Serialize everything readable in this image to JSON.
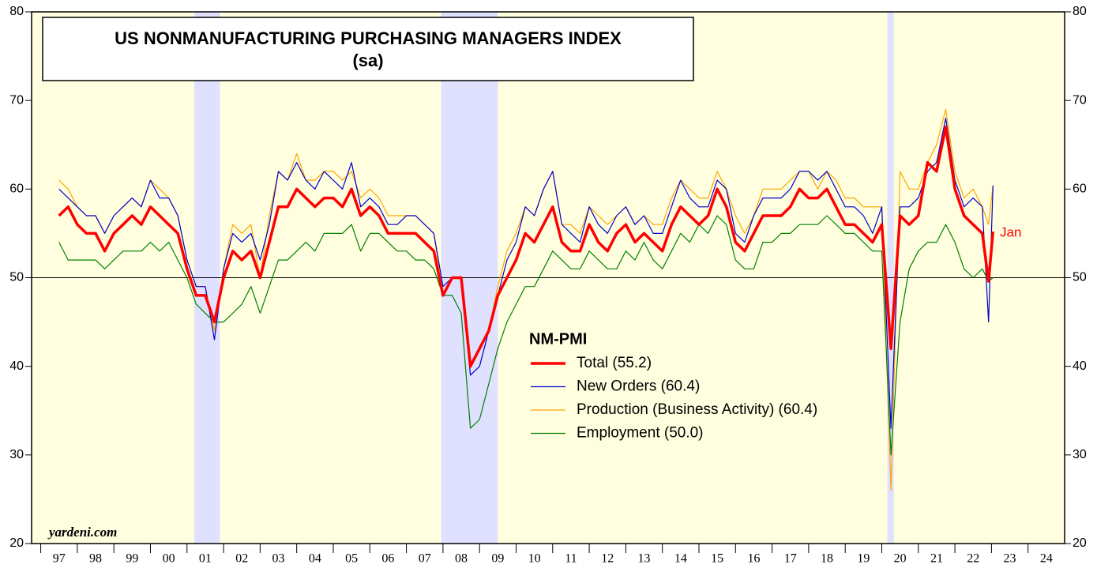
{
  "chart_data": {
    "type": "line",
    "title": "US NONMANUFACTURING PURCHASING MANAGERS INDEX",
    "subtitle": "(sa)",
    "legend_title": "NM-PMI",
    "annotation": "Jan",
    "source": "yardeni.com",
    "xlim": [
      1996.75,
      2025
    ],
    "ylim": [
      20,
      80
    ],
    "yticks": [
      20,
      30,
      40,
      50,
      60,
      70,
      80
    ],
    "hline": 50,
    "xticks": [
      {
        "value": 1997,
        "label": "97"
      },
      {
        "value": 1998,
        "label": "98"
      },
      {
        "value": 1999,
        "label": "99"
      },
      {
        "value": 2000,
        "label": "00"
      },
      {
        "value": 2001,
        "label": "01"
      },
      {
        "value": 2002,
        "label": "02"
      },
      {
        "value": 2003,
        "label": "03"
      },
      {
        "value": 2004,
        "label": "04"
      },
      {
        "value": 2005,
        "label": "05"
      },
      {
        "value": 2006,
        "label": "06"
      },
      {
        "value": 2007,
        "label": "07"
      },
      {
        "value": 2008,
        "label": "08"
      },
      {
        "value": 2009,
        "label": "09"
      },
      {
        "value": 2010,
        "label": "10"
      },
      {
        "value": 2011,
        "label": "11"
      },
      {
        "value": 2012,
        "label": "12"
      },
      {
        "value": 2013,
        "label": "13"
      },
      {
        "value": 2014,
        "label": "14"
      },
      {
        "value": 2015,
        "label": "15"
      },
      {
        "value": 2016,
        "label": "16"
      },
      {
        "value": 2017,
        "label": "17"
      },
      {
        "value": 2018,
        "label": "18"
      },
      {
        "value": 2019,
        "label": "19"
      },
      {
        "value": 2020,
        "label": "20"
      },
      {
        "value": 2021,
        "label": "21"
      },
      {
        "value": 2022,
        "label": "22"
      },
      {
        "value": 2023,
        "label": "23"
      },
      {
        "value": 2024,
        "label": "24"
      }
    ],
    "recessions": [
      [
        2001.2,
        2001.9
      ],
      [
        2007.95,
        2009.5
      ],
      [
        2020.15,
        2020.33
      ]
    ],
    "x": [
      1997.5,
      1997.75,
      1998,
      1998.25,
      1998.5,
      1998.75,
      1999,
      1999.25,
      1999.5,
      1999.75,
      2000,
      2000.25,
      2000.5,
      2000.75,
      2001,
      2001.25,
      2001.5,
      2001.75,
      2002,
      2002.25,
      2002.5,
      2002.75,
      2003,
      2003.25,
      2003.5,
      2003.75,
      2004,
      2004.25,
      2004.5,
      2004.75,
      2005,
      2005.25,
      2005.5,
      2005.75,
      2006,
      2006.25,
      2006.5,
      2006.75,
      2007,
      2007.25,
      2007.5,
      2007.75,
      2008,
      2008.25,
      2008.5,
      2008.75,
      2009,
      2009.25,
      2009.5,
      2009.75,
      2010,
      2010.25,
      2010.5,
      2010.75,
      2011,
      2011.25,
      2011.5,
      2011.75,
      2012,
      2012.25,
      2012.5,
      2012.75,
      2013,
      2013.25,
      2013.5,
      2013.75,
      2014,
      2014.25,
      2014.5,
      2014.75,
      2015,
      2015.25,
      2015.5,
      2015.75,
      2016,
      2016.25,
      2016.5,
      2016.75,
      2017,
      2017.25,
      2017.5,
      2017.75,
      2018,
      2018.25,
      2018.5,
      2018.75,
      2019,
      2019.25,
      2019.5,
      2019.75,
      2020,
      2020.25,
      2020.5,
      2020.75,
      2021,
      2021.25,
      2021.5,
      2021.75,
      2022,
      2022.25,
      2022.5,
      2022.75,
      2022.92,
      2023.04
    ],
    "series": [
      {
        "name": "Total (55.2)",
        "color": "#ff0000",
        "width": 3.5,
        "values": [
          57,
          58,
          56,
          55,
          55,
          53,
          55,
          56,
          57,
          56,
          58,
          57,
          56,
          55,
          51,
          48,
          48,
          45,
          50,
          53,
          52,
          53,
          50,
          54,
          58,
          58,
          60,
          59,
          58,
          59,
          59,
          58,
          60,
          57,
          58,
          57,
          55,
          55,
          55,
          55,
          54,
          53,
          48,
          50,
          50,
          40,
          42,
          44,
          48,
          50,
          52,
          55,
          54,
          56,
          58,
          54,
          53,
          53,
          56,
          54,
          53,
          55,
          56,
          54,
          55,
          54,
          53,
          56,
          58,
          57,
          56,
          57,
          60,
          58,
          54,
          53,
          55,
          57,
          57,
          57,
          58,
          60,
          59,
          59,
          60,
          58,
          56,
          56,
          55,
          54,
          56,
          42,
          57,
          56,
          57,
          63,
          62,
          67,
          60,
          57,
          56,
          55,
          49.6,
          55.2
        ]
      },
      {
        "name": "New Orders (60.4)",
        "color": "#0000cc",
        "width": 1.2,
        "values": [
          60,
          59,
          58,
          57,
          57,
          55,
          57,
          58,
          59,
          58,
          61,
          59,
          59,
          57,
          52,
          49,
          49,
          43,
          51,
          55,
          54,
          55,
          52,
          56,
          62,
          61,
          63,
          61,
          60,
          62,
          61,
          60,
          63,
          58,
          59,
          58,
          56,
          56,
          57,
          57,
          56,
          55,
          49,
          50,
          50,
          39,
          40,
          44,
          48,
          52,
          54,
          58,
          57,
          60,
          62,
          56,
          55,
          54,
          58,
          56,
          55,
          57,
          58,
          56,
          57,
          55,
          55,
          58,
          61,
          59,
          58,
          58,
          61,
          60,
          55,
          54,
          57,
          59,
          59,
          59,
          60,
          62,
          62,
          61,
          62,
          60,
          58,
          58,
          57,
          55,
          58,
          33,
          58,
          58,
          59,
          62,
          63,
          68,
          61,
          58,
          59,
          58,
          45,
          60.4
        ]
      },
      {
        "name": "Production (Business Activity) (60.4)",
        "color": "#ffa500",
        "width": 1.2,
        "values": [
          61,
          60,
          58,
          57,
          57,
          55,
          57,
          58,
          59,
          58,
          61,
          60,
          59,
          57,
          52,
          49,
          49,
          44,
          51,
          56,
          55,
          56,
          50,
          57,
          62,
          61,
          64,
          61,
          61,
          62,
          62,
          61,
          62,
          59,
          60,
          59,
          57,
          57,
          57,
          57,
          56,
          55,
          48,
          50,
          50,
          40,
          42,
          44,
          49,
          53,
          55,
          58,
          57,
          60,
          62,
          56,
          56,
          55,
          58,
          57,
          56,
          57,
          58,
          56,
          57,
          56,
          56,
          59,
          61,
          60,
          59,
          59,
          62,
          60,
          57,
          55,
          57,
          60,
          60,
          60,
          61,
          62,
          62,
          60,
          62,
          61,
          59,
          59,
          58,
          58,
          58,
          26,
          62,
          60,
          60,
          63,
          65,
          69,
          62,
          59,
          60,
          58,
          56,
          60.4
        ]
      },
      {
        "name": "Employment (50.0)",
        "color": "#008000",
        "width": 1.2,
        "values": [
          54,
          52,
          52,
          52,
          52,
          51,
          52,
          53,
          53,
          53,
          54,
          53,
          54,
          52,
          50,
          47,
          46,
          45,
          45,
          46,
          47,
          49,
          46,
          49,
          52,
          52,
          53,
          54,
          53,
          55,
          55,
          55,
          56,
          53,
          55,
          55,
          54,
          53,
          53,
          52,
          52,
          51,
          48,
          48,
          46,
          33,
          34,
          38,
          42,
          45,
          47,
          49,
          49,
          51,
          53,
          52,
          51,
          51,
          53,
          52,
          51,
          51,
          53,
          52,
          54,
          52,
          51,
          53,
          55,
          54,
          56,
          55,
          57,
          56,
          52,
          51,
          51,
          54,
          54,
          55,
          55,
          56,
          56,
          56,
          57,
          56,
          55,
          55,
          54,
          53,
          53,
          30,
          45,
          51,
          53,
          54,
          54,
          56,
          54,
          51,
          50,
          51,
          49.6,
          50
        ]
      }
    ]
  }
}
